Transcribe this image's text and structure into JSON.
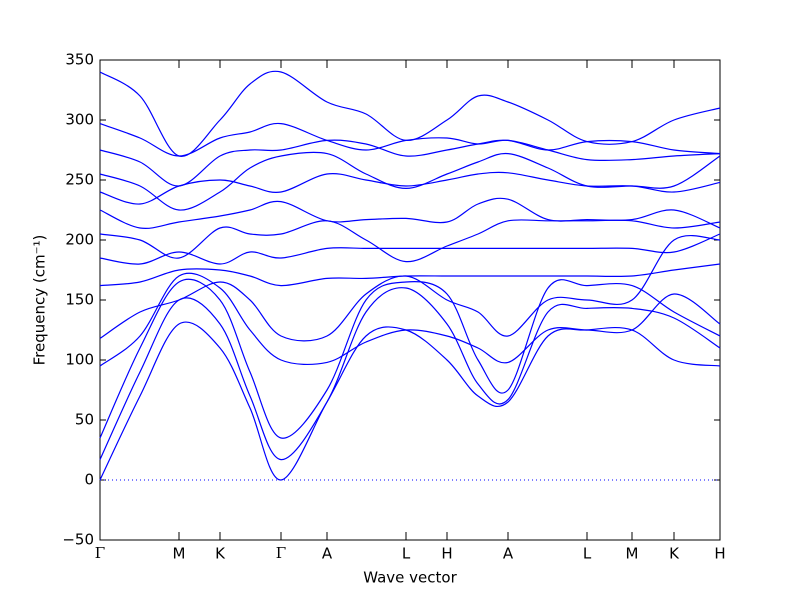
{
  "chart_data": {
    "type": "line",
    "x_label": "Wave vector",
    "y_label": "Frequency (cm⁻¹)",
    "color": "#0000ff",
    "xlim": [
      0,
      620
    ],
    "ylim": [
      -50,
      350
    ],
    "xticks": [
      {
        "value": 0,
        "label": "Γ"
      },
      {
        "value": 79,
        "label": "M"
      },
      {
        "value": 120,
        "label": "K"
      },
      {
        "value": 181,
        "label": "Γ"
      },
      {
        "value": 227,
        "label": "A"
      },
      {
        "value": 306,
        "label": "L"
      },
      {
        "value": 347,
        "label": "H"
      },
      {
        "value": 408,
        "label": "A"
      },
      {
        "value": 487,
        "label": "L"
      },
      {
        "value": 532,
        "label": "M"
      },
      {
        "value": 574,
        "label": "K"
      },
      {
        "value": 620,
        "label": "H"
      }
    ],
    "yticks": [
      {
        "value": -50,
        "label": "−50"
      },
      0,
      50,
      100,
      150,
      200,
      250,
      300,
      350
    ],
    "reference_line": 0,
    "x": [
      0,
      40,
      79,
      120,
      150,
      181,
      227,
      266,
      306,
      347,
      378,
      408,
      448,
      487,
      532,
      574,
      620
    ],
    "series": [
      {
        "values": [
          0,
          70,
          130,
          110,
          60,
          0,
          65,
          120,
          125,
          100,
          70,
          65,
          120,
          125,
          125,
          100,
          95
        ]
      },
      {
        "values": [
          17,
          90,
          150,
          130,
          70,
          17,
          65,
          140,
          160,
          130,
          80,
          67,
          140,
          143,
          143,
          135,
          110
        ]
      },
      {
        "values": [
          35,
          110,
          165,
          150,
          90,
          35,
          75,
          150,
          165,
          155,
          100,
          75,
          160,
          162,
          162,
          140,
          120
        ]
      },
      {
        "values": [
          95,
          120,
          170,
          160,
          125,
          100,
          98,
          115,
          125,
          120,
          110,
          98,
          125,
          125,
          125,
          155,
          130
        ]
      },
      {
        "values": [
          118,
          140,
          150,
          165,
          150,
          120,
          120,
          155,
          170,
          150,
          140,
          120,
          150,
          150,
          150,
          200,
          200
        ]
      },
      {
        "values": [
          162,
          165,
          175,
          175,
          170,
          162,
          168,
          168,
          170,
          170,
          170,
          170,
          170,
          170,
          170,
          175,
          180
        ]
      },
      {
        "values": [
          185,
          180,
          190,
          180,
          190,
          185,
          193,
          193,
          193,
          193,
          193,
          193,
          193,
          193,
          193,
          190,
          205
        ]
      },
      {
        "values": [
          205,
          200,
          185,
          210,
          205,
          205,
          216,
          200,
          182,
          195,
          205,
          216,
          216,
          216,
          216,
          210,
          215
        ]
      },
      {
        "values": [
          225,
          210,
          215,
          220,
          225,
          232,
          216,
          217,
          218,
          215,
          230,
          234,
          217,
          217,
          217,
          225,
          210
        ]
      },
      {
        "values": [
          240,
          230,
          245,
          250,
          245,
          240,
          255,
          250,
          245,
          250,
          255,
          256,
          250,
          245,
          245,
          240,
          248
        ]
      },
      {
        "values": [
          255,
          245,
          225,
          240,
          260,
          270,
          272,
          255,
          243,
          255,
          265,
          272,
          260,
          245,
          245,
          245,
          270
        ]
      },
      {
        "values": [
          275,
          265,
          245,
          270,
          275,
          275,
          283,
          280,
          270,
          275,
          280,
          283,
          275,
          267,
          267,
          270,
          272
        ]
      },
      {
        "values": [
          297,
          285,
          270,
          285,
          290,
          297,
          283,
          275,
          283,
          285,
          280,
          283,
          275,
          282,
          282,
          275,
          272
        ]
      },
      {
        "values": [
          340,
          320,
          270,
          300,
          330,
          340,
          315,
          305,
          283,
          300,
          320,
          315,
          300,
          282,
          282,
          300,
          310
        ]
      }
    ]
  }
}
